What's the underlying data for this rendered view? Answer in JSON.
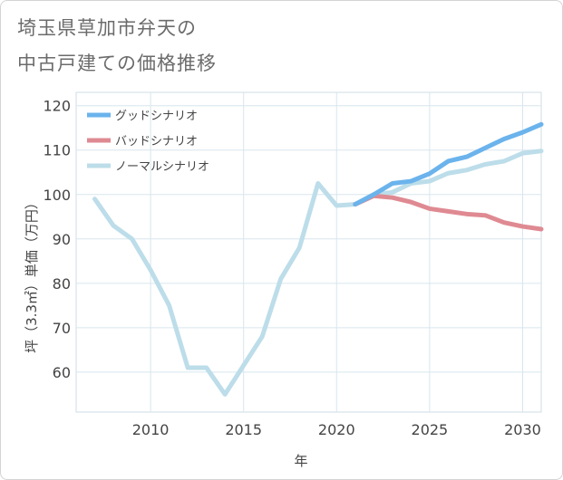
{
  "title": {
    "line1": "埼玉県草加市弁天の",
    "line2": "中古戸建ての価格推移"
  },
  "chart_data": {
    "type": "line",
    "xlabel": "年",
    "ylabel": "坪（3.3㎡）単価（万円）",
    "xlim": [
      2006,
      2031
    ],
    "ylim": [
      51,
      123
    ],
    "x_ticks": [
      2010,
      2015,
      2020,
      2025,
      2030
    ],
    "y_ticks": [
      60,
      70,
      80,
      90,
      100,
      110,
      120
    ],
    "grid": true,
    "legend_position": "top-left",
    "series": [
      {
        "name": "グッドシナリオ",
        "color": "#6bb3ec",
        "x": [
          2021,
          2022,
          2023,
          2024,
          2025,
          2026,
          2027,
          2028,
          2029,
          2030,
          2031
        ],
        "values": [
          97.8,
          100.0,
          102.5,
          103.0,
          104.7,
          107.5,
          108.5,
          110.5,
          112.5,
          114.0,
          115.8
        ]
      },
      {
        "name": "バッドシナリオ",
        "color": "#df8a92",
        "x": [
          2021,
          2022,
          2023,
          2024,
          2025,
          2026,
          2027,
          2028,
          2029,
          2030,
          2031
        ],
        "values": [
          97.8,
          99.7,
          99.3,
          98.3,
          96.8,
          96.2,
          95.6,
          95.3,
          93.7,
          92.8,
          92.2
        ]
      },
      {
        "name": "ノーマルシナリオ",
        "color": "#bcdde9",
        "x": [
          2007,
          2008,
          2009,
          2010,
          2011,
          2012,
          2013,
          2014,
          2015,
          2016,
          2017,
          2018,
          2019,
          2020,
          2021,
          2022,
          2023,
          2024,
          2025,
          2026,
          2027,
          2028,
          2029,
          2030,
          2031
        ],
        "values": [
          99,
          93,
          90,
          83,
          75,
          61,
          61,
          55,
          61.5,
          68,
          81,
          88,
          102.5,
          97.5,
          97.8,
          100.0,
          100.5,
          102.5,
          103.0,
          104.8,
          105.5,
          106.8,
          107.5,
          109.3,
          109.8
        ]
      }
    ]
  }
}
